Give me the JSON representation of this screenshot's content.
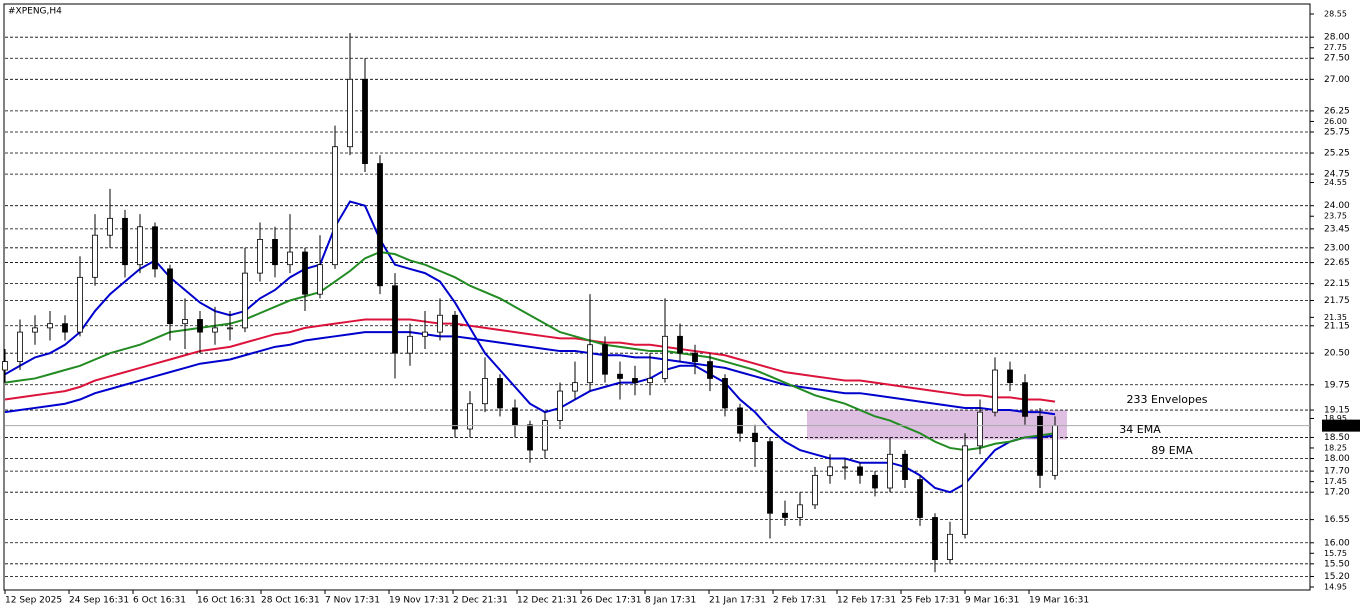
{
  "chart_data": {
    "type": "candlestick",
    "title": "#XPENG,H4",
    "ylim": [
      14.95,
      28.55
    ],
    "yticks": [
      28.55,
      27.75,
      {
        "value": 26,
        "label": "26.00"
      },
      24.55,
      23.75,
      21.35,
      18.95,
      18.25,
      17.45,
      15.75,
      14.95
    ],
    "levels": [
      {
        "value": 28,
        "label": "28.00"
      },
      {
        "value": 27.5,
        "label": "27.50"
      },
      {
        "value": 27,
        "label": "27.00"
      },
      26.25,
      25.75,
      25.25,
      24.75,
      {
        "value": 24,
        "label": "24.00"
      },
      23.45,
      {
        "value": 23,
        "label": "23.00"
      },
      22.65,
      22.15,
      21.75,
      21.15,
      {
        "value": 20.5,
        "label": "20.50"
      },
      19.75,
      19.15,
      {
        "value": 18.5,
        "label": "18.50"
      },
      {
        "value": 18,
        "label": "18.00"
      },
      {
        "value": 17.7,
        "label": "17.70"
      },
      {
        "value": 17.2,
        "label": "17.20"
      },
      16.55,
      {
        "value": 16,
        "label": "16.00"
      },
      {
        "value": 15.5,
        "label": "15.50"
      },
      {
        "value": 15.2,
        "label": "15.20"
      }
    ],
    "last_price": 18.78,
    "zone": [
      18.45,
      19.15
    ],
    "x_labels": [
      "12 Sep 2025",
      "24 Sep 16:31",
      "6 Oct 16:31",
      "16 Oct 16:31",
      "28 Oct 16:31",
      "7 Nov 17:31",
      "19 Nov 17:31",
      "2 Dec 21:31",
      "12 Dec 21:31",
      "26 Dec 17:31",
      "8 Jan 17:31",
      "21 Jan 17:31",
      "2 Feb 17:31",
      "12 Feb 17:31",
      "25 Feb 17:31",
      "9 Mar 16:31",
      "19 Mar 16:31"
    ],
    "candles": [
      [
        20.1,
        20.6,
        19.8,
        20.3
      ],
      [
        20.3,
        21.3,
        20.1,
        21.0
      ],
      [
        21.0,
        21.4,
        20.7,
        21.1
      ],
      [
        21.1,
        21.5,
        20.8,
        21.2
      ],
      [
        21.2,
        21.4,
        20.8,
        21.0
      ],
      [
        21.0,
        22.8,
        20.9,
        22.3
      ],
      [
        22.3,
        23.8,
        22.1,
        23.3
      ],
      [
        23.3,
        24.4,
        23.0,
        23.7
      ],
      [
        23.7,
        23.9,
        22.3,
        22.6
      ],
      [
        22.6,
        23.8,
        22.4,
        23.5
      ],
      [
        23.5,
        23.6,
        22.3,
        22.5
      ],
      [
        22.5,
        22.6,
        20.8,
        21.2
      ],
      [
        21.2,
        21.8,
        20.6,
        21.3
      ],
      [
        21.3,
        21.5,
        20.5,
        21.0
      ],
      [
        21.0,
        21.6,
        20.7,
        21.1
      ],
      [
        21.1,
        21.5,
        20.8,
        21.1
      ],
      [
        21.1,
        23.0,
        21.0,
        22.4
      ],
      [
        22.4,
        23.6,
        22.2,
        23.2
      ],
      [
        23.2,
        23.5,
        22.3,
        22.6
      ],
      [
        22.6,
        23.8,
        22.4,
        22.9
      ],
      [
        22.9,
        23.0,
        21.5,
        21.9
      ],
      [
        21.9,
        23.3,
        21.8,
        22.6
      ],
      [
        22.6,
        25.9,
        22.5,
        25.4
      ],
      [
        25.4,
        28.1,
        25.2,
        27.0
      ],
      [
        27.0,
        27.5,
        24.8,
        25.0
      ],
      [
        25.0,
        25.2,
        21.9,
        22.1
      ],
      [
        22.1,
        22.4,
        19.9,
        20.5
      ],
      [
        20.5,
        21.2,
        20.2,
        20.9
      ],
      [
        20.9,
        21.5,
        20.6,
        21.0
      ],
      [
        21.0,
        21.8,
        20.8,
        21.4
      ],
      [
        21.4,
        21.5,
        18.5,
        18.7
      ],
      [
        18.7,
        19.6,
        18.5,
        19.3
      ],
      [
        19.3,
        20.4,
        19.1,
        19.9
      ],
      [
        19.9,
        20.0,
        19.0,
        19.2
      ],
      [
        19.2,
        19.4,
        18.5,
        18.8
      ],
      [
        18.8,
        18.9,
        17.9,
        18.2
      ],
      [
        18.2,
        19.1,
        18.0,
        18.9
      ],
      [
        18.9,
        19.8,
        18.7,
        19.6
      ],
      [
        19.6,
        20.3,
        19.4,
        19.8
      ],
      [
        19.8,
        21.9,
        19.6,
        20.7
      ],
      [
        20.7,
        20.9,
        19.8,
        20.0
      ],
      [
        20.0,
        20.3,
        19.4,
        19.9
      ],
      [
        19.9,
        20.2,
        19.5,
        19.8
      ],
      [
        19.8,
        20.5,
        19.5,
        19.9
      ],
      [
        19.9,
        21.8,
        19.8,
        20.9
      ],
      [
        20.9,
        21.2,
        20.3,
        20.5
      ],
      [
        20.5,
        20.7,
        20.0,
        20.3
      ],
      [
        20.3,
        20.5,
        19.6,
        19.9
      ],
      [
        19.9,
        20.0,
        19.0,
        19.2
      ],
      [
        19.2,
        19.3,
        18.4,
        18.6
      ],
      [
        18.6,
        18.8,
        17.8,
        18.4
      ],
      [
        18.4,
        18.5,
        16.1,
        16.7
      ],
      [
        16.7,
        17.0,
        16.4,
        16.6
      ],
      [
        16.6,
        17.2,
        16.4,
        16.9
      ],
      [
        16.9,
        17.8,
        16.8,
        17.6
      ],
      [
        17.6,
        18.1,
        17.4,
        17.8
      ],
      [
        17.8,
        18.0,
        17.5,
        17.8
      ],
      [
        17.8,
        17.9,
        17.4,
        17.6
      ],
      [
        17.6,
        17.7,
        17.1,
        17.3
      ],
      [
        17.3,
        18.5,
        17.2,
        18.1
      ],
      [
        18.1,
        18.2,
        17.3,
        17.5
      ],
      [
        17.5,
        17.6,
        16.4,
        16.6
      ],
      [
        16.6,
        16.7,
        15.3,
        15.6
      ],
      [
        15.6,
        16.5,
        15.5,
        16.2
      ],
      [
        16.2,
        18.6,
        16.1,
        18.3
      ],
      [
        18.3,
        19.4,
        18.1,
        19.1
      ],
      [
        19.1,
        20.4,
        19.0,
        20.1
      ],
      [
        20.1,
        20.3,
        19.6,
        19.8
      ],
      [
        19.8,
        20.0,
        18.8,
        19.0
      ],
      [
        19.0,
        19.2,
        17.3,
        17.6
      ],
      [
        17.6,
        19.0,
        17.5,
        18.78
      ]
    ],
    "series": [
      {
        "name": "233 Envelopes",
        "color": "#dc143c",
        "lower_color": "#0000cd",
        "values": [
          19.4,
          19.45,
          19.5,
          19.55,
          19.6,
          19.7,
          19.85,
          19.95,
          20.05,
          20.15,
          20.25,
          20.35,
          20.45,
          20.55,
          20.6,
          20.65,
          20.75,
          20.85,
          20.95,
          21.0,
          21.1,
          21.15,
          21.2,
          21.25,
          21.3,
          21.3,
          21.3,
          21.3,
          21.25,
          21.2,
          21.2,
          21.15,
          21.1,
          21.05,
          21.0,
          20.95,
          20.9,
          20.85,
          20.85,
          20.8,
          20.75,
          20.75,
          20.7,
          20.7,
          20.65,
          20.6,
          20.55,
          20.5,
          20.45,
          20.35,
          20.25,
          20.15,
          20.05,
          20.0,
          19.95,
          19.9,
          19.85,
          19.85,
          19.8,
          19.75,
          19.7,
          19.65,
          19.6,
          19.55,
          19.5,
          19.5,
          19.45,
          19.45,
          19.4,
          19.4,
          19.35
        ],
        "lower": [
          19.1,
          19.15,
          19.2,
          19.25,
          19.3,
          19.4,
          19.55,
          19.65,
          19.75,
          19.85,
          19.95,
          20.05,
          20.15,
          20.25,
          20.3,
          20.35,
          20.45,
          20.55,
          20.65,
          20.7,
          20.8,
          20.85,
          20.9,
          20.95,
          21.0,
          21.0,
          21.0,
          21.0,
          20.95,
          20.9,
          20.9,
          20.85,
          20.8,
          20.75,
          20.7,
          20.65,
          20.6,
          20.55,
          20.55,
          20.5,
          20.45,
          20.45,
          20.4,
          20.4,
          20.35,
          20.3,
          20.25,
          20.2,
          20.15,
          20.05,
          19.95,
          19.85,
          19.75,
          19.7,
          19.65,
          19.6,
          19.55,
          19.55,
          19.5,
          19.45,
          19.4,
          19.35,
          19.3,
          19.25,
          19.2,
          19.2,
          19.15,
          19.15,
          19.1,
          19.1,
          19.05
        ]
      },
      {
        "name": "34 EMA",
        "color": "#0000cd",
        "values": [
          20.0,
          20.2,
          20.4,
          20.5,
          20.7,
          21.0,
          21.5,
          21.9,
          22.2,
          22.5,
          22.7,
          22.3,
          22.0,
          21.7,
          21.5,
          21.4,
          21.5,
          21.8,
          22.0,
          22.3,
          22.5,
          22.6,
          23.5,
          24.1,
          24.0,
          23.2,
          22.6,
          22.5,
          22.4,
          22.2,
          21.7,
          21.1,
          20.5,
          20.1,
          19.7,
          19.3,
          19.1,
          19.2,
          19.4,
          19.6,
          19.7,
          19.8,
          19.8,
          19.9,
          20.1,
          20.2,
          20.2,
          20.0,
          19.8,
          19.4,
          19.1,
          18.7,
          18.4,
          18.2,
          18.1,
          18.0,
          18.0,
          17.9,
          17.9,
          17.9,
          17.8,
          17.6,
          17.3,
          17.2,
          17.4,
          17.8,
          18.2,
          18.4,
          18.5,
          18.5,
          18.55
        ]
      },
      {
        "name": "89 EMA",
        "color": "#228b22",
        "values": [
          19.8,
          19.85,
          19.9,
          20.0,
          20.1,
          20.2,
          20.35,
          20.5,
          20.6,
          20.7,
          20.85,
          21.0,
          21.05,
          21.1,
          21.15,
          21.2,
          21.3,
          21.45,
          21.6,
          21.75,
          21.85,
          21.95,
          22.2,
          22.45,
          22.75,
          22.9,
          22.85,
          22.7,
          22.6,
          22.45,
          22.3,
          22.1,
          21.95,
          21.8,
          21.6,
          21.4,
          21.2,
          21.0,
          20.9,
          20.8,
          20.7,
          20.65,
          20.6,
          20.55,
          20.55,
          20.5,
          20.45,
          20.4,
          20.3,
          20.2,
          20.1,
          19.95,
          19.8,
          19.65,
          19.5,
          19.4,
          19.3,
          19.15,
          19.0,
          18.9,
          18.75,
          18.6,
          18.4,
          18.25,
          18.2,
          18.25,
          18.35,
          18.4,
          18.5,
          18.55,
          18.6
        ]
      }
    ]
  }
}
